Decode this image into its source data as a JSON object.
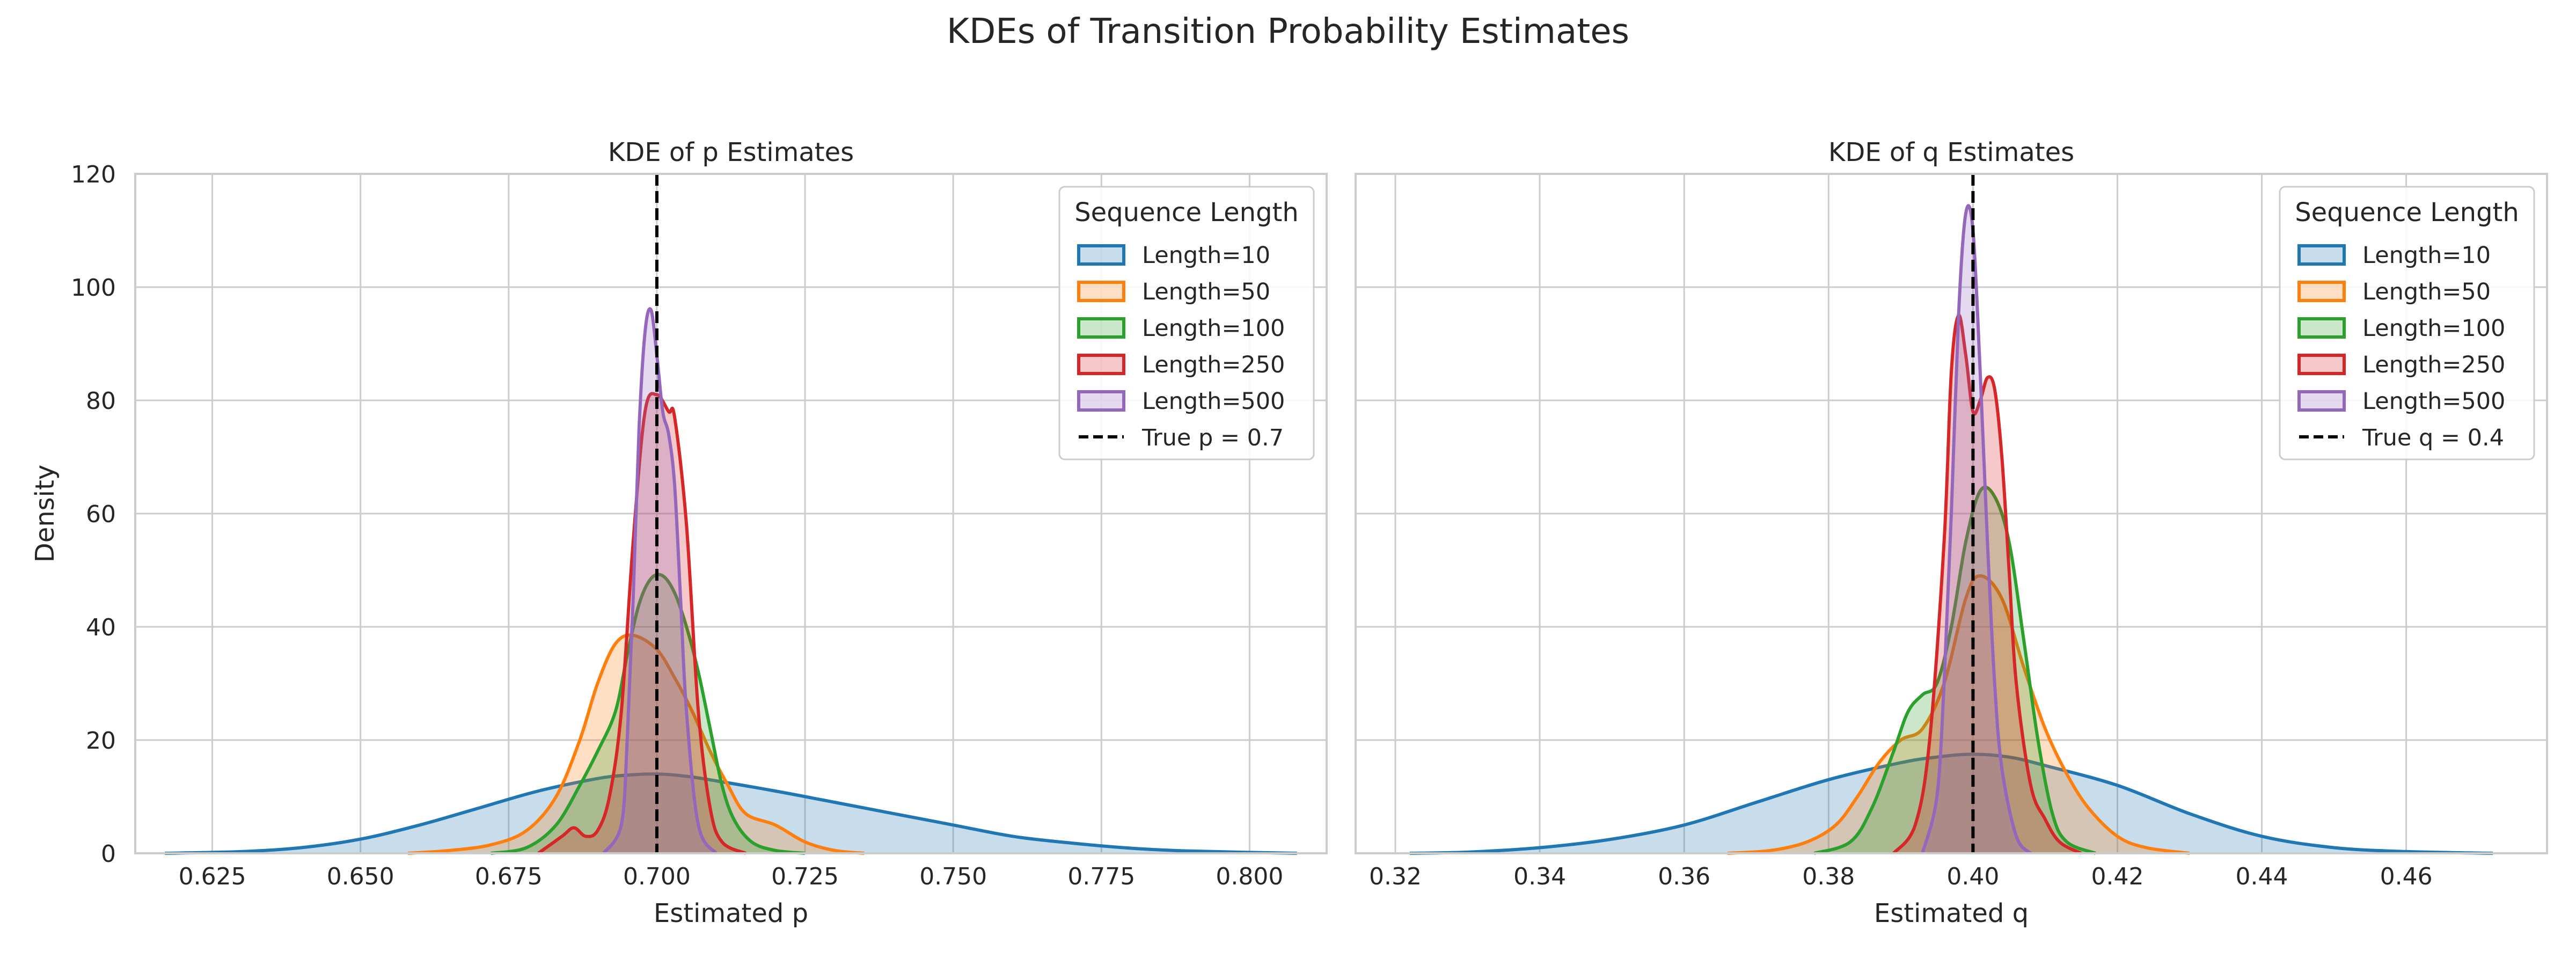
{
  "figure": {
    "title": "KDEs of Transition Probability Estimates",
    "background": "#ffffff",
    "grid_color": "#cccccc",
    "spine_color": "#cccccc"
  },
  "chart_data": [
    {
      "type": "area",
      "subtype": "kde",
      "title": "KDE of p Estimates",
      "xlabel": "Estimated p",
      "ylabel": "Density",
      "xlim": [
        0.612,
        0.813
      ],
      "ylim": [
        0,
        120
      ],
      "xticks": [
        "0.625",
        "0.650",
        "0.675",
        "0.700",
        "0.725",
        "0.750",
        "0.775",
        "0.800"
      ],
      "yticks": [
        "0",
        "20",
        "40",
        "60",
        "80",
        "100",
        "120"
      ],
      "grid": true,
      "legend": {
        "title": "Sequence Length",
        "placement": "top-right"
      },
      "reference_line": {
        "x": 0.7,
        "label": "True p = 0.7",
        "style": "dashed",
        "color": "#000000"
      },
      "series": [
        {
          "name": "Length=10",
          "color": "#1f77b4",
          "x": [
            0.617,
            0.63,
            0.64,
            0.65,
            0.66,
            0.67,
            0.68,
            0.69,
            0.695,
            0.7,
            0.705,
            0.71,
            0.72,
            0.73,
            0.74,
            0.75,
            0.76,
            0.77,
            0.78,
            0.79,
            0.808
          ],
          "y": [
            0,
            0.3,
            1,
            2.5,
            5,
            8,
            11,
            13.2,
            13.8,
            14,
            13.6,
            12.8,
            11,
            9,
            7,
            5,
            3,
            1.8,
            0.9,
            0.4,
            0
          ]
        },
        {
          "name": "Length=50",
          "color": "#ff7f0e",
          "x": [
            0.658,
            0.665,
            0.672,
            0.678,
            0.683,
            0.687,
            0.69,
            0.693,
            0.696,
            0.7,
            0.703,
            0.706,
            0.709,
            0.712,
            0.715,
            0.72,
            0.725,
            0.73,
            0.735
          ],
          "y": [
            0,
            0.5,
            1.5,
            4,
            10,
            20,
            30,
            37,
            38.5,
            36,
            31,
            25,
            18,
            12,
            7,
            5,
            2,
            0.5,
            0
          ]
        },
        {
          "name": "Length=100",
          "color": "#2ca02c",
          "x": [
            0.672,
            0.678,
            0.683,
            0.687,
            0.69,
            0.693,
            0.695,
            0.697,
            0.699,
            0.701,
            0.703,
            0.705,
            0.707,
            0.709,
            0.711,
            0.713,
            0.716,
            0.72,
            0.725
          ],
          "y": [
            0,
            1,
            5,
            12,
            18,
            25,
            35,
            44,
            48.5,
            49,
            46,
            40,
            32,
            22,
            12,
            6,
            2,
            0.5,
            0
          ]
        },
        {
          "name": "Length=250",
          "color": "#d62728",
          "x": [
            0.68,
            0.684,
            0.686,
            0.688,
            0.69,
            0.692,
            0.694,
            0.696,
            0.698,
            0.7,
            0.702,
            0.703,
            0.705,
            0.707,
            0.709,
            0.711,
            0.715
          ],
          "y": [
            0,
            3,
            4.5,
            3,
            4,
            10,
            25,
            55,
            78,
            81,
            78,
            77,
            58,
            25,
            8,
            2,
            0
          ]
        },
        {
          "name": "Length=500",
          "color": "#9467bd",
          "x": [
            0.691,
            0.694,
            0.695,
            0.696,
            0.697,
            0.698,
            0.699,
            0.7,
            0.701,
            0.702,
            0.703,
            0.704,
            0.705,
            0.707,
            0.71
          ],
          "y": [
            0,
            5,
            20,
            45,
            75,
            92,
            96,
            88,
            78,
            74,
            65,
            45,
            25,
            5,
            0
          ]
        }
      ]
    },
    {
      "type": "area",
      "subtype": "kde",
      "title": "KDE of q Estimates",
      "xlabel": "Estimated q",
      "ylabel": "",
      "xlim": [
        0.3145,
        0.4795
      ],
      "ylim": [
        0,
        120
      ],
      "xticks": [
        "0.32",
        "0.34",
        "0.36",
        "0.38",
        "0.40",
        "0.42",
        "0.44",
        "0.46"
      ],
      "yticks": [],
      "grid": true,
      "legend": {
        "title": "Sequence Length",
        "placement": "top-right"
      },
      "reference_line": {
        "x": 0.4,
        "label": "True q = 0.4",
        "style": "dashed",
        "color": "#000000"
      },
      "series": [
        {
          "name": "Length=10",
          "color": "#1f77b4",
          "x": [
            0.322,
            0.33,
            0.34,
            0.35,
            0.36,
            0.37,
            0.38,
            0.39,
            0.395,
            0.4,
            0.405,
            0.41,
            0.42,
            0.43,
            0.44,
            0.45,
            0.46,
            0.472
          ],
          "y": [
            0,
            0.2,
            1,
            2.5,
            5,
            9,
            13,
            16,
            17,
            17.5,
            17,
            15.5,
            12,
            7,
            3,
            1,
            0.3,
            0
          ]
        },
        {
          "name": "Length=50",
          "color": "#ff7f0e",
          "x": [
            0.366,
            0.372,
            0.377,
            0.381,
            0.384,
            0.387,
            0.39,
            0.393,
            0.396,
            0.399,
            0.401,
            0.404,
            0.407,
            0.41,
            0.413,
            0.416,
            0.42,
            0.424,
            0.43
          ],
          "y": [
            0,
            0.5,
            2,
            5,
            10,
            16,
            20,
            22,
            30,
            45,
            49,
            45,
            33,
            22,
            14,
            8,
            3,
            1,
            0
          ]
        },
        {
          "name": "Length=100",
          "color": "#2ca02c",
          "x": [
            0.378,
            0.383,
            0.386,
            0.389,
            0.391,
            0.393,
            0.395,
            0.397,
            0.399,
            0.401,
            0.403,
            0.405,
            0.407,
            0.409,
            0.411,
            0.413,
            0.417
          ],
          "y": [
            0,
            2,
            8,
            18,
            25,
            28,
            30,
            40,
            55,
            64,
            63,
            55,
            38,
            20,
            7,
            2,
            0
          ]
        },
        {
          "name": "Length=250",
          "color": "#d62728",
          "x": [
            0.389,
            0.392,
            0.394,
            0.396,
            0.397,
            0.398,
            0.399,
            0.4,
            0.401,
            0.402,
            0.403,
            0.404,
            0.405,
            0.406,
            0.408,
            0.41,
            0.412,
            0.415
          ],
          "y": [
            0,
            5,
            20,
            55,
            85,
            95,
            88,
            78,
            80,
            84,
            82,
            70,
            50,
            30,
            12,
            6,
            2,
            0
          ]
        },
        {
          "name": "Length=500",
          "color": "#9467bd",
          "x": [
            0.393,
            0.395,
            0.396,
            0.397,
            0.398,
            0.399,
            0.4,
            0.401,
            0.402,
            0.403,
            0.404,
            0.406,
            0.408
          ],
          "y": [
            0,
            10,
            30,
            60,
            95,
            113,
            110,
            85,
            55,
            30,
            15,
            3,
            0
          ]
        }
      ]
    }
  ]
}
